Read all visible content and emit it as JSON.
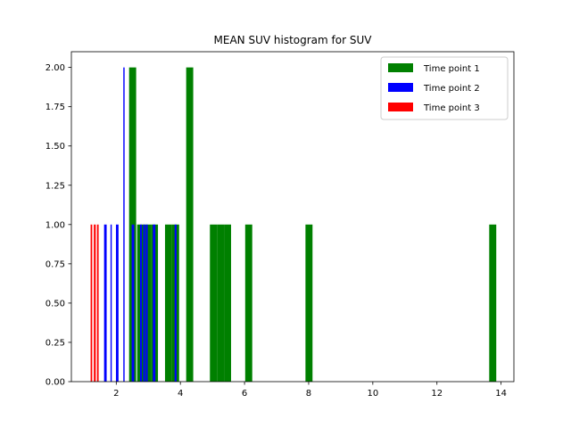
{
  "chart_data": {
    "type": "bar",
    "title": "MEAN SUV histogram for SUV",
    "xlabel": "",
    "ylabel": "",
    "xlim": [
      0.6,
      14.4
    ],
    "ylim": [
      0,
      2.1
    ],
    "xticks": [
      2,
      4,
      6,
      8,
      10,
      12,
      14
    ],
    "xtick_labels": [
      "2",
      "4",
      "6",
      "8",
      "10",
      "12",
      "14"
    ],
    "yticks": [
      0,
      0.25,
      0.5,
      0.75,
      1.0,
      1.25,
      1.5,
      1.75,
      2.0
    ],
    "ytick_labels": [
      "0.00",
      "0.25",
      "0.50",
      "0.75",
      "1.00",
      "1.25",
      "1.50",
      "1.75",
      "2.00"
    ],
    "grid": false,
    "legend_position": "top-right",
    "series": [
      {
        "name": "Time point 1",
        "color": "#008000",
        "bins": [
          {
            "x0": 2.4,
            "x1": 2.62,
            "count": 2
          },
          {
            "x0": 2.65,
            "x1": 2.86,
            "count": 1
          },
          {
            "x0": 2.86,
            "x1": 3.08,
            "count": 1
          },
          {
            "x0": 3.08,
            "x1": 3.3,
            "count": 1
          },
          {
            "x0": 3.52,
            "x1": 3.74,
            "count": 1
          },
          {
            "x0": 3.74,
            "x1": 3.96,
            "count": 1
          },
          {
            "x0": 4.18,
            "x1": 4.4,
            "count": 2
          },
          {
            "x0": 4.92,
            "x1": 5.14,
            "count": 1
          },
          {
            "x0": 5.14,
            "x1": 5.36,
            "count": 1
          },
          {
            "x0": 5.36,
            "x1": 5.58,
            "count": 1
          },
          {
            "x0": 6.02,
            "x1": 6.24,
            "count": 1
          },
          {
            "x0": 7.9,
            "x1": 8.12,
            "count": 1
          },
          {
            "x0": 13.63,
            "x1": 13.85,
            "count": 1
          }
        ]
      },
      {
        "name": "Time point 2",
        "color": "#0000ff",
        "bins": [
          {
            "x0": 1.62,
            "x1": 1.7,
            "count": 1
          },
          {
            "x0": 1.82,
            "x1": 1.86,
            "count": 1
          },
          {
            "x0": 1.99,
            "x1": 2.07,
            "count": 1
          },
          {
            "x0": 2.22,
            "x1": 2.26,
            "count": 2
          },
          {
            "x0": 2.48,
            "x1": 2.56,
            "count": 1
          },
          {
            "x0": 2.74,
            "x1": 2.8,
            "count": 1
          },
          {
            "x0": 2.84,
            "x1": 2.9,
            "count": 1
          },
          {
            "x0": 2.92,
            "x1": 2.98,
            "count": 1
          },
          {
            "x0": 3.14,
            "x1": 3.22,
            "count": 1
          },
          {
            "x0": 3.82,
            "x1": 3.88,
            "count": 1
          }
        ]
      },
      {
        "name": "Time point 3",
        "color": "#ff0000",
        "bins": [
          {
            "x0": 1.2,
            "x1": 1.25,
            "count": 1
          },
          {
            "x0": 1.3,
            "x1": 1.36,
            "count": 1
          },
          {
            "x0": 1.4,
            "x1": 1.45,
            "count": 1
          }
        ]
      }
    ]
  }
}
